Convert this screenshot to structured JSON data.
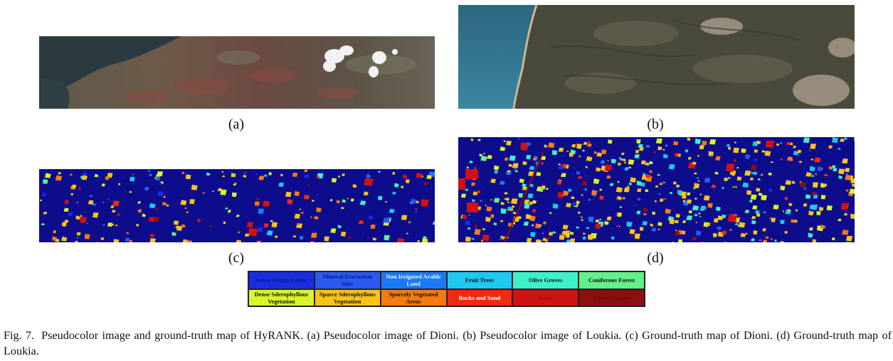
{
  "panels": [
    {
      "key": "a",
      "label": "(a)",
      "kind": "pseudocolor"
    },
    {
      "key": "b",
      "label": "(b)",
      "kind": "pseudocolor"
    },
    {
      "key": "c",
      "label": "(c)",
      "kind": "ground-truth"
    },
    {
      "key": "d",
      "label": "(d)",
      "kind": "ground-truth"
    }
  ],
  "legend": {
    "items": [
      {
        "label": "Dense Urban Fabric",
        "color": "#1a2de0",
        "text_color": "#0a1a90"
      },
      {
        "label": "Mineral Extraction Sites",
        "color": "#2a5af0",
        "text_color": "#0a1a90"
      },
      {
        "label": "Non Irrigated Arable Land",
        "color": "#1a78f5",
        "text_color": "#f2f6ff"
      },
      {
        "label": "Fruit Trees",
        "color": "#1ec8f0",
        "text_color": "#111111"
      },
      {
        "label": "Olive Groves",
        "color": "#3ef0c8",
        "text_color": "#111111"
      },
      {
        "label": "Coniferous Forest",
        "color": "#62f08a",
        "text_color": "#111111"
      },
      {
        "label": "Dense Sderophyllous Vegetation",
        "color": "#d9f52a",
        "text_color": "#111111"
      },
      {
        "label": "Sparce Sderophyllous Vegetation",
        "color": "#f8c418",
        "text_color": "#111111"
      },
      {
        "label": "Sparcely Vegetated Areas",
        "color": "#f87a10",
        "text_color": "#111111"
      },
      {
        "label": "Rocks and Sand",
        "color": "#f02a10",
        "text_color": "#ffffff"
      },
      {
        "label": "Water",
        "color": "#d01212",
        "text_color": "#aa0a0a"
      },
      {
        "label": "Coastal Water",
        "color": "#8c1010",
        "text_color": "#6a0808"
      }
    ]
  },
  "caption": {
    "prefix": "Fig. 7.",
    "text": "Pseudocolor image and ground-truth map of HyRANK. (a) Pseudocolor image of Dioni. (b) Pseudocolor image of Loukia. (c) Ground-truth map of Dioni. (d) Ground-truth map of Loukia."
  }
}
